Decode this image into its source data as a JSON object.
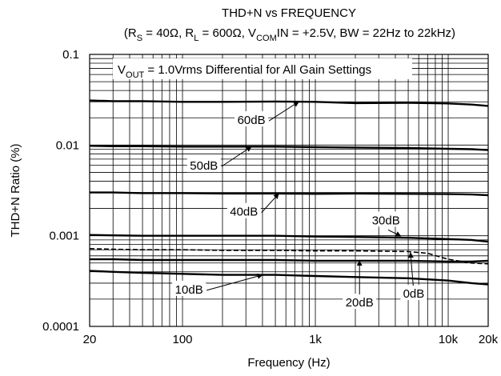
{
  "chart_data": {
    "type": "line",
    "title": "THD+N vs FREQUENCY",
    "subtitle": {
      "p1": "(R",
      "s1": "S",
      "p2": " = 40Ω, R",
      "s2": "L",
      "p3": " = 600Ω, V",
      "s3": "COM",
      "p4": "IN = +2.5V, BW = 22Hz to 22kHz)"
    },
    "note": {
      "p1": "V",
      "s1": "OUT",
      "p2": " = 1.0Vrms Differential for All Gain Settings"
    },
    "xlabel": "Frequency (Hz)",
    "ylabel": "THD+N Ratio (%)",
    "x_scale": "log",
    "y_scale": "log",
    "xlim": [
      20,
      20000
    ],
    "ylim": [
      0.0001,
      0.1
    ],
    "grid": true,
    "x_ticks": [
      {
        "value": 20,
        "label": "20"
      },
      {
        "value": 100,
        "label": "100"
      },
      {
        "value": 1000,
        "label": "1k"
      },
      {
        "value": 10000,
        "label": "10k"
      },
      {
        "value": 20000,
        "label": "20k"
      }
    ],
    "y_ticks": [
      {
        "value": 0.1,
        "label": "0.1"
      },
      {
        "value": 0.01,
        "label": "0.01"
      },
      {
        "value": 0.001,
        "label": "0.001"
      },
      {
        "value": 0.0001,
        "label": "0.0001"
      }
    ],
    "series": [
      {
        "name": "60dB",
        "x": [
          20,
          30,
          50,
          100,
          200,
          500,
          1000,
          2000,
          5000,
          10000,
          15000,
          20000
        ],
        "y": [
          0.031,
          0.0305,
          0.0305,
          0.03,
          0.03,
          0.0302,
          0.03,
          0.029,
          0.0292,
          0.0288,
          0.028,
          0.027
        ]
      },
      {
        "name": "50dB",
        "x": [
          20,
          30,
          50,
          100,
          200,
          500,
          1000,
          2000,
          5000,
          10000,
          15000,
          20000
        ],
        "y": [
          0.0098,
          0.0097,
          0.0097,
          0.0096,
          0.0096,
          0.0096,
          0.0095,
          0.0094,
          0.0093,
          0.0091,
          0.009,
          0.0088
        ]
      },
      {
        "name": "40dB",
        "x": [
          20,
          30,
          50,
          100,
          200,
          500,
          1000,
          2000,
          5000,
          10000,
          15000,
          20000
        ],
        "y": [
          0.003,
          0.003,
          0.00295,
          0.00295,
          0.00292,
          0.00292,
          0.0029,
          0.00292,
          0.0029,
          0.00288,
          0.00285,
          0.0028
        ]
      },
      {
        "name": "30dB",
        "x": [
          20,
          30,
          50,
          100,
          200,
          500,
          1000,
          2000,
          5000,
          10000,
          15000,
          20000
        ],
        "y": [
          0.00102,
          0.00101,
          0.001,
          0.001,
          0.001,
          0.001,
          0.00098,
          0.00097,
          0.00095,
          0.00092,
          0.0009,
          0.00086
        ]
      },
      {
        "name": "0dB",
        "dashed": true,
        "x": [
          20,
          30,
          50,
          100,
          200,
          500,
          1000,
          2000,
          5000,
          7000,
          10000,
          15000,
          20000
        ],
        "y": [
          0.00072,
          0.00071,
          0.0007,
          0.0007,
          0.00069,
          0.00069,
          0.00068,
          0.00068,
          0.00067,
          0.00064,
          0.00055,
          0.0005,
          0.00049
        ]
      },
      {
        "name": "20dB",
        "x": [
          20,
          30,
          50,
          100,
          200,
          500,
          1000,
          2000,
          5000,
          10000,
          15000,
          20000
        ],
        "y": [
          0.00055,
          0.00055,
          0.00054,
          0.00054,
          0.00054,
          0.00054,
          0.00053,
          0.00053,
          0.00053,
          0.00052,
          0.00052,
          0.00053
        ]
      },
      {
        "name": "10dB",
        "x": [
          20,
          30,
          50,
          100,
          200,
          500,
          1000,
          2000,
          5000,
          10000,
          15000,
          20000
        ],
        "y": [
          0.00041,
          0.0004,
          0.00039,
          0.00038,
          0.00037,
          0.00037,
          0.00036,
          0.00035,
          0.00034,
          0.00032,
          0.0003,
          0.00029
        ]
      }
    ],
    "annotations": [
      {
        "text": "60dB",
        "tx": 330,
        "ty": 0.0185,
        "ax": 750,
        "ay": 0.03
      },
      {
        "text": "50dB",
        "tx": 145,
        "ty": 0.0058,
        "ax": 330,
        "ay": 0.0096
      },
      {
        "text": "40dB",
        "tx": 290,
        "ty": 0.0018,
        "ax": 530,
        "ay": 0.00292
      },
      {
        "text": "30dB",
        "tx": 3400,
        "ty": 0.00145,
        "ax": 4400,
        "ay": 0.00099
      },
      {
        "text": "20dB",
        "tx": 2150,
        "ty": 0.00018,
        "ax": 2150,
        "ay": 0.00053
      },
      {
        "text": "0dB",
        "tx": 5500,
        "ty": 0.000225,
        "ax": 5200,
        "ay": 0.00065
      },
      {
        "text": "10dB",
        "tx": 112,
        "ty": 0.00025,
        "ax": 400,
        "ay": 0.00037
      }
    ]
  }
}
